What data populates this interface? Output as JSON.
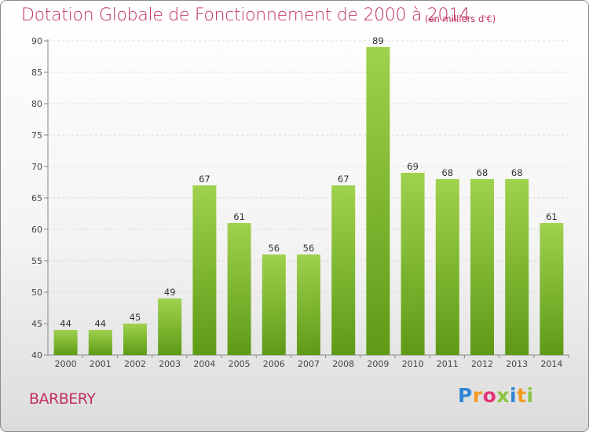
{
  "chart_data": {
    "type": "bar",
    "title": "Dotation Globale de Fonctionnement de 2000 à 2014",
    "subtitle": "(en milliers d'€)",
    "categories": [
      "2000",
      "2001",
      "2002",
      "2003",
      "2004",
      "2005",
      "2006",
      "2007",
      "2008",
      "2009",
      "2010",
      "2011",
      "2012",
      "2013",
      "2014"
    ],
    "values": [
      44,
      44,
      45,
      49,
      67,
      61,
      56,
      56,
      67,
      89,
      69,
      68,
      68,
      68,
      61
    ],
    "ylim": [
      40,
      90
    ],
    "yticks": [
      40,
      45,
      50,
      55,
      60,
      65,
      70,
      75,
      80,
      85,
      90
    ],
    "grid": true,
    "bar_color_top": "#9fd24e",
    "bar_color_bottom": "#5e9a16",
    "legend": "none"
  },
  "commune": "BARBERY",
  "logo": {
    "letters": [
      "P",
      "r",
      "o",
      "x",
      "i",
      "t",
      "i"
    ],
    "colors": [
      "#2f86d6",
      "#f39a1e",
      "#e2347a",
      "#8bc43f",
      "#2f86d6",
      "#f39a1e",
      "#8bc43f"
    ]
  }
}
